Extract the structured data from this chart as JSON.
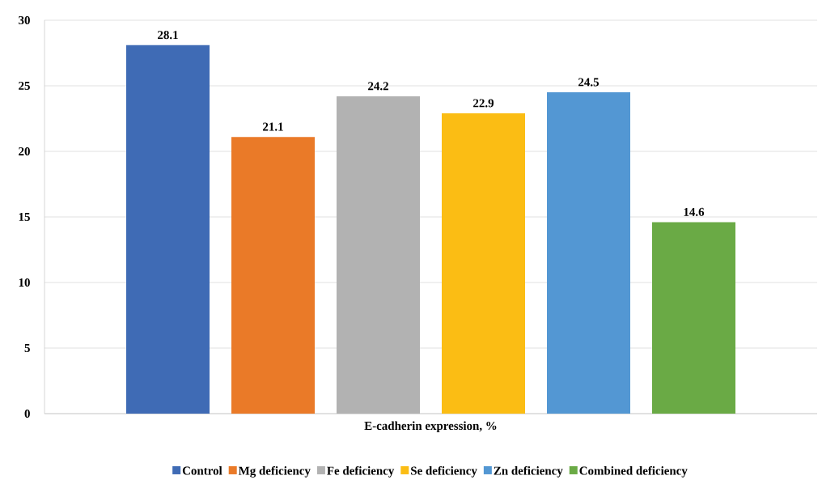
{
  "chart_data": {
    "type": "bar",
    "categories": [
      "E-cadherin expression, %"
    ],
    "series": [
      {
        "name": "Control",
        "color": "#3f6bb5",
        "values": [
          28.1
        ]
      },
      {
        "name": "Mg deficiency",
        "color": "#ea7a28",
        "values": [
          21.1
        ]
      },
      {
        "name": "Fe deficiency",
        "color": "#b2b2b2",
        "values": [
          24.2
        ]
      },
      {
        "name": "Se deficiency",
        "color": "#fbbd14",
        "values": [
          22.9
        ]
      },
      {
        "name": "Zn deficiency",
        "color": "#5397d3",
        "values": [
          24.5
        ]
      },
      {
        "name": "Combined deficiency",
        "color": "#6aaa45",
        "values": [
          14.6
        ]
      }
    ],
    "ylim": [
      0,
      30
    ],
    "yticks": [
      0,
      5,
      10,
      15,
      20,
      25,
      30
    ],
    "grid": "y",
    "legend": "bottom",
    "data_labels": true
  }
}
